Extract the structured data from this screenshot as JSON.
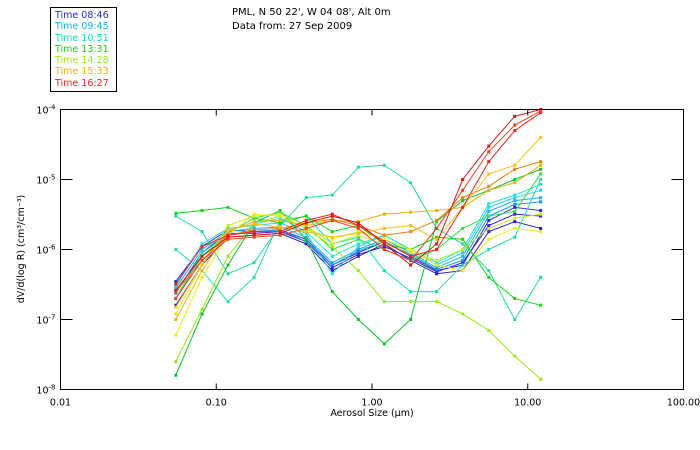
{
  "header": {
    "line1": "PML, N 50 22', W 04 08', Alt 0m",
    "line2": "Data from: 27 Sep 2009"
  },
  "legend": [
    {
      "label": "Time 08:46",
      "color": "#1f2fd6"
    },
    {
      "label": "Time 09:45",
      "color": "#12b4ee"
    },
    {
      "label": "Time 10:51",
      "color": "#1ddfb0"
    },
    {
      "label": "Time 13:31",
      "color": "#16d21a"
    },
    {
      "label": "Time 14:28",
      "color": "#9be81a"
    },
    {
      "label": "Time 15:33",
      "color": "#f0b010"
    },
    {
      "label": "Time 16:27",
      "color": "#e8281a"
    }
  ],
  "chart_data": {
    "type": "line",
    "title": "PML, N 50 22', W 04 08', Alt 0m",
    "subtitle": "Data from: 27 Sep 2009",
    "xlabel": "Aerosol Size (µm)",
    "ylabel": "dV/d(log R) (cm³/cm⁻³)",
    "xscale": "log",
    "yscale": "log",
    "xlim": [
      0.01,
      100
    ],
    "ylim": [
      1e-08,
      0.0001
    ],
    "x_ticks": [
      "0.01",
      "0.10",
      "1.00",
      "10.00",
      "100.00"
    ],
    "y_ticks": [
      {
        "base": "10",
        "exp": "-4"
      },
      {
        "base": "10",
        "exp": "-5"
      },
      {
        "base": "10",
        "exp": "-6"
      },
      {
        "base": "10",
        "exp": "-7"
      },
      {
        "base": "10",
        "exp": "-8"
      }
    ],
    "legend_position": "top-left (outside)",
    "grid": false,
    "x": [
      0.055,
      0.081,
      0.119,
      0.175,
      0.257,
      0.378,
      0.556,
      0.817,
      1.2,
      1.77,
      2.6,
      3.82,
      5.62,
      8.25,
      12.1
    ],
    "series": [
      {
        "name": "Time 08:46",
        "color": "#1f2fd6",
        "values": [
          3.5e-07,
          1.1e-06,
          1.9e-06,
          1.8e-06,
          1.9e-06,
          1.4e-06,
          6e-07,
          9e-07,
          1.3e-06,
          8e-07,
          5e-07,
          6e-07,
          2.6e-06,
          4e-06,
          3.6e-06
        ]
      },
      {
        "name": "Time 08:46",
        "color": "#2a1fc8",
        "values": [
          1.6e-07,
          6e-07,
          1.5e-06,
          1.6e-06,
          1.7e-06,
          1.2e-06,
          5e-07,
          8e-07,
          1.2e-06,
          7e-07,
          4.5e-07,
          5e-07,
          1.8e-06,
          2.5e-06,
          2e-06
        ]
      },
      {
        "name": "Time 08:46",
        "color": "#3a22e0",
        "values": [
          2.4e-07,
          9e-07,
          1.7e-06,
          1.7e-06,
          1.8e-06,
          1.3e-06,
          5.5e-07,
          8.5e-07,
          1.1e-06,
          7.5e-07,
          4.8e-07,
          6.5e-07,
          2.2e-06,
          3.2e-06,
          3e-06
        ]
      },
      {
        "name": "Time 09:45",
        "color": "#12b4ee",
        "values": [
          2.8e-07,
          1e-06,
          1.8e-06,
          2e-06,
          2.1e-06,
          1.5e-06,
          6.5e-07,
          1e-06,
          1.4e-06,
          9e-07,
          5.5e-07,
          8e-07,
          3.5e-06,
          5e-06,
          5.5e-06
        ]
      },
      {
        "name": "Time 09:45",
        "color": "#1a8ff0",
        "values": [
          2e-07,
          8e-07,
          1.6e-06,
          1.8e-06,
          1.9e-06,
          1.3e-06,
          6e-07,
          9.5e-07,
          1.3e-06,
          8.5e-07,
          5.2e-07,
          7e-07,
          3e-06,
          4.4e-06,
          4.8e-06
        ]
      },
      {
        "name": "Time 09:45",
        "color": "#2ad0f0",
        "values": [
          3e-07,
          1.2e-06,
          2e-06,
          2.2e-06,
          2.4e-06,
          1.7e-06,
          4.5e-07,
          1.1e-06,
          1.6e-06,
          1e-06,
          6e-07,
          9e-07,
          4e-06,
          5.5e-06,
          7e-06
        ]
      },
      {
        "name": "Time 10:51",
        "color": "#1ddfb0",
        "values": [
          1e-06,
          5e-07,
          1.8e-07,
          4e-07,
          2.6e-06,
          3e-06,
          1.2e-06,
          1.5e-06,
          5e-07,
          2.5e-07,
          2.5e-07,
          6e-07,
          1e-06,
          1.5e-06,
          1e-05
        ]
      },
      {
        "name": "Time 10:51",
        "color": "#20e8c8",
        "values": [
          2e-07,
          9e-07,
          1.9e-06,
          2.3e-06,
          2.8e-06,
          1.8e-06,
          8e-07,
          1.2e-06,
          1.6e-06,
          1e-06,
          6.5e-07,
          1e-06,
          4.5e-06,
          6e-06,
          8.5e-06
        ]
      },
      {
        "name": "Time 10:51",
        "color": "#28d8a0",
        "values": [
          3e-06,
          1.8e-06,
          4.5e-07,
          6.5e-07,
          2.2e-06,
          5.5e-06,
          6e-06,
          1.5e-05,
          1.6e-05,
          9e-06,
          2e-06,
          1.2e-06,
          5e-07,
          1e-07,
          4e-07
        ]
      },
      {
        "name": "Time 13:31",
        "color": "#16d21a",
        "values": [
          3.3e-06,
          3.6e-06,
          4e-06,
          2.8e-06,
          2.4e-06,
          3e-06,
          1.8e-06,
          2.2e-06,
          1.2e-06,
          1e-06,
          1.5e-06,
          1.4e-06,
          4e-07,
          2e-07,
          1.6e-07
        ]
      },
      {
        "name": "Time 13:31",
        "color": "#10c030",
        "values": [
          1.6e-08,
          1.2e-07,
          6e-07,
          2.4e-06,
          3.6e-06,
          1.4e-06,
          2.5e-07,
          1e-07,
          4.5e-08,
          1e-07,
          2.5e-06,
          5e-06,
          7e-06,
          1e-05,
          1.4e-05
        ]
      },
      {
        "name": "Time 13:31",
        "color": "#2ee04a",
        "values": [
          2e-07,
          8e-07,
          1.7e-06,
          2.8e-06,
          3.4e-06,
          2.2e-06,
          1e-06,
          1.4e-06,
          1e-06,
          7e-07,
          1e-06,
          2e-06,
          3e-06,
          3.5e-06,
          1.2e-05
        ]
      },
      {
        "name": "Time 14:28",
        "color": "#9be81a",
        "values": [
          2.5e-08,
          1.4e-07,
          8e-07,
          2.4e-06,
          3e-06,
          2e-06,
          1.1e-06,
          5e-07,
          1.8e-07,
          1.8e-07,
          1.8e-07,
          1.2e-07,
          7e-08,
          3e-08,
          1.4e-08
        ]
      },
      {
        "name": "Time 14:28",
        "color": "#c8f020",
        "values": [
          1.2e-07,
          6e-07,
          2.2e-06,
          3e-06,
          3.2e-06,
          2.2e-06,
          1.2e-06,
          1.6e-06,
          1.2e-06,
          9e-07,
          7e-07,
          1e-06,
          2e-06,
          2.8e-06,
          3.2e-06
        ]
      },
      {
        "name": "Time 14:28",
        "color": "#e8f018",
        "values": [
          6e-08,
          4e-07,
          1.6e-06,
          3.2e-06,
          3e-06,
          2e-06,
          1.4e-06,
          1.8e-06,
          1.4e-06,
          1e-06,
          6e-07,
          5e-07,
          1.4e-06,
          2e-06,
          1.8e-06
        ]
      },
      {
        "name": "Time 15:33",
        "color": "#f0b010",
        "values": [
          1e-07,
          5e-07,
          1.8e-06,
          2.5e-06,
          2.6e-06,
          2.2e-06,
          2.6e-06,
          2.5e-06,
          3.2e-06,
          3.4e-06,
          3.6e-06,
          4e-06,
          7e-06,
          9e-06,
          1.6e-05
        ]
      },
      {
        "name": "Time 15:33",
        "color": "#f08010",
        "values": [
          2.5e-07,
          7e-07,
          1.6e-06,
          1.9e-06,
          2e-06,
          2.4e-06,
          2.7e-06,
          2.2e-06,
          1.6e-06,
          1.8e-06,
          2.6e-06,
          5.5e-06,
          8e-06,
          1.4e-05,
          1.8e-05
        ]
      },
      {
        "name": "Time 15:33",
        "color": "#f8c020",
        "values": [
          1.5e-07,
          6e-07,
          1.9e-06,
          2.3e-06,
          2.1e-06,
          1.8e-06,
          1.5e-06,
          1.7e-06,
          2e-06,
          2.2e-06,
          1.4e-06,
          4e-06,
          1.2e-05,
          1.6e-05,
          4e-05
        ]
      },
      {
        "name": "Time 16:27",
        "color": "#e8281a",
        "values": [
          3.2e-07,
          1.1e-06,
          1.6e-06,
          1.8e-06,
          1.8e-06,
          2.6e-06,
          3.2e-06,
          2.2e-06,
          1.3e-06,
          8e-07,
          1e-06,
          4e-06,
          1.8e-05,
          5e-05,
          9e-05
        ]
      },
      {
        "name": "Time 16:27",
        "color": "#d81818",
        "values": [
          2.6e-07,
          8e-07,
          1.5e-06,
          1.6e-06,
          1.7e-06,
          2.4e-06,
          3e-06,
          2.4e-06,
          1.2e-06,
          6e-07,
          1.2e-06,
          1e-05,
          3e-05,
          8e-05,
          0.0001
        ]
      },
      {
        "name": "Time 16:27",
        "color": "#f04020",
        "values": [
          2e-07,
          7e-07,
          1.4e-06,
          1.5e-06,
          1.6e-06,
          2e-06,
          2.6e-06,
          2e-06,
          1e-06,
          7e-07,
          2e-06,
          7e-06,
          2.5e-05,
          6e-05,
          9.5e-05
        ]
      }
    ]
  }
}
